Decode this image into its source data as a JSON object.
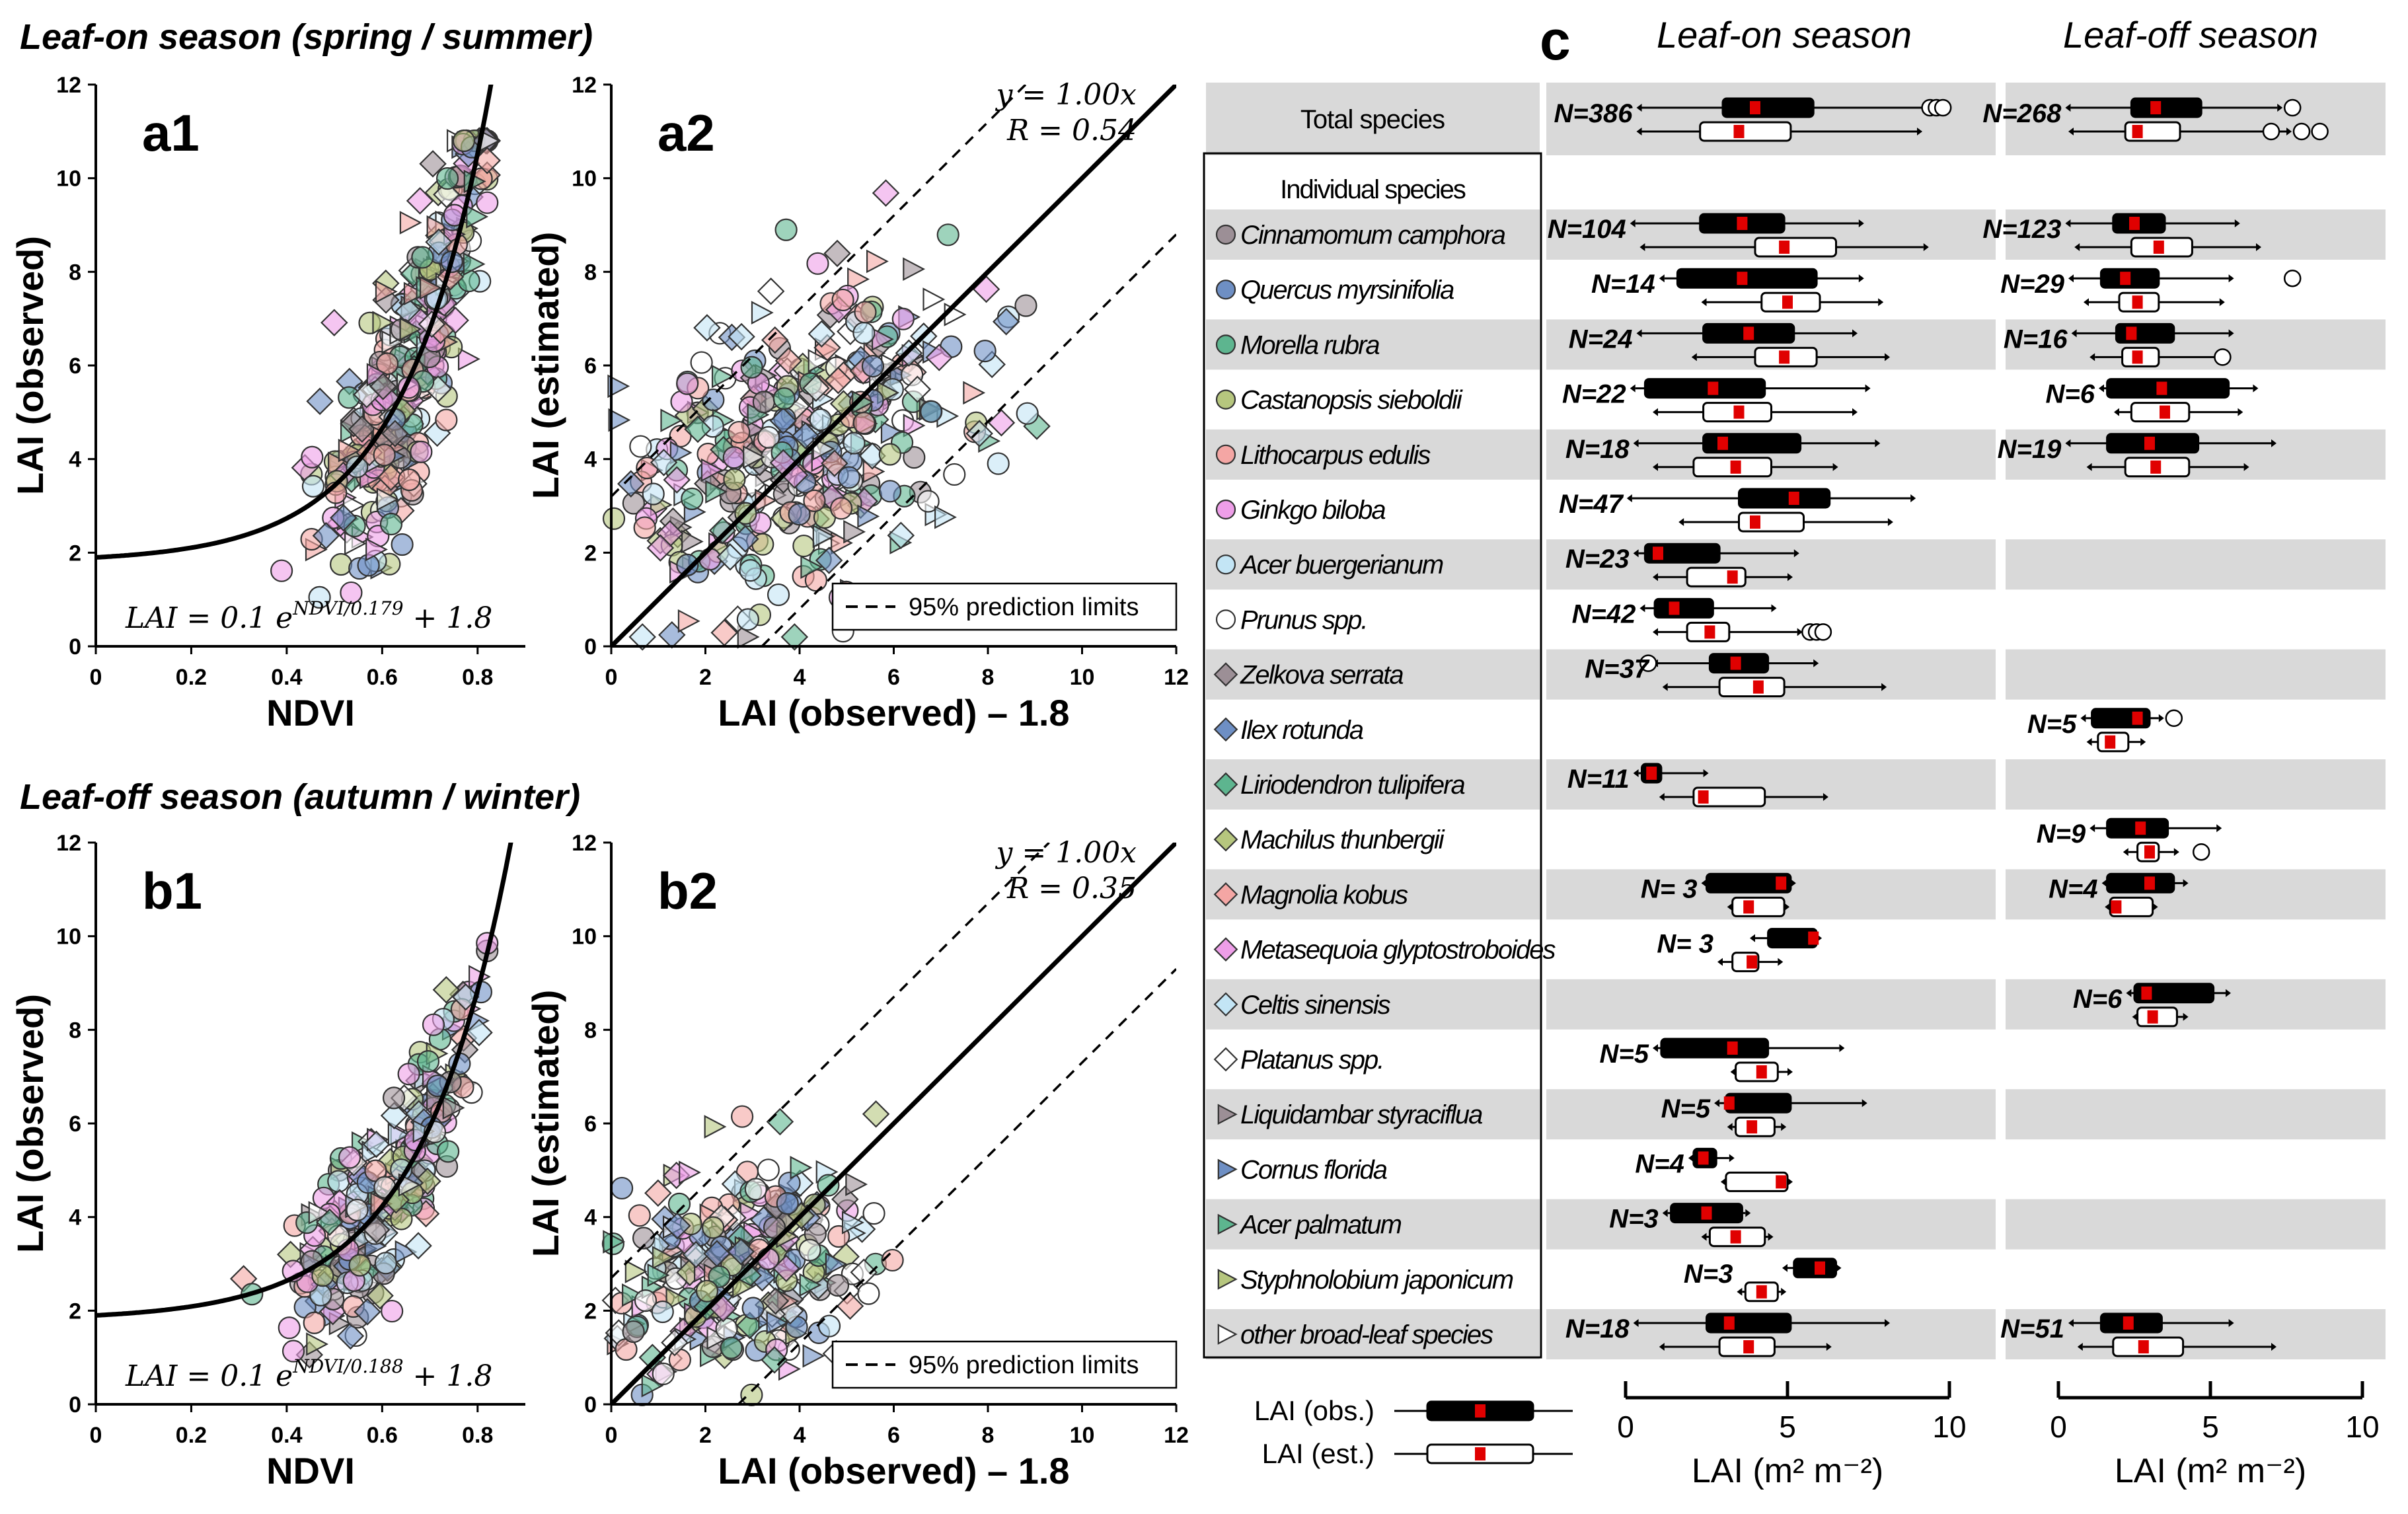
{
  "figure": {
    "leaf_on_heading": "Leaf-on season (spring / summer)",
    "leaf_off_heading": "Leaf-off season (autumn / winter)"
  },
  "chart_data": [
    {
      "id": "a1",
      "type": "scatter",
      "panel_label": "a1",
      "xlabel": "NDVI",
      "ylabel": "LAI (observed)",
      "xlim": [
        0,
        0.9
      ],
      "ylim": [
        0,
        12
      ],
      "x_ticks": [
        "0",
        "0.2",
        "0.4",
        "0.6",
        "0.8"
      ],
      "x_tick_values": [
        0,
        0.2,
        0.4,
        0.6,
        0.8
      ],
      "y_ticks": [
        "0",
        "2",
        "4",
        "6",
        "8",
        "10",
        "12"
      ],
      "y_tick_values": [
        0,
        2,
        4,
        6,
        8,
        10,
        12
      ],
      "curve": {
        "a": 0.1,
        "b": 0.179,
        "c": 1.8
      },
      "equation": "LAI = 0.1 e^(NDVI/0.179) + 1.8",
      "equation_parts": [
        "LAI = 0.1 e",
        "NDVI/0.179",
        " + 1.8"
      ],
      "n_points": 386,
      "point_center": [
        0.66,
        5.6
      ],
      "point_spread": [
        0.09,
        1.6
      ]
    },
    {
      "id": "a2",
      "type": "scatter",
      "panel_label": "a2",
      "xlabel": "LAI (observed) – 1.8",
      "ylabel": "LAI (estimated)",
      "xlim": [
        0,
        12
      ],
      "ylim": [
        0,
        12
      ],
      "x_ticks": [
        "0",
        "2",
        "4",
        "6",
        "8",
        "10",
        "12"
      ],
      "x_tick_values": [
        0,
        2,
        4,
        6,
        8,
        10,
        12
      ],
      "y_ticks": [
        "0",
        "2",
        "4",
        "6",
        "8",
        "10",
        "12"
      ],
      "y_tick_values": [
        0,
        2,
        4,
        6,
        8,
        10,
        12
      ],
      "fit_line_slope": 1.0,
      "prediction_offset": 3.2,
      "equation_line1": "y = 1.00x",
      "equation_line2": "R = 0.54",
      "legend_label": "95% prediction limits",
      "n_points": 386,
      "point_center": [
        3.8,
        4.0
      ],
      "point_spread": [
        1.9,
        1.6
      ]
    },
    {
      "id": "b1",
      "type": "scatter",
      "panel_label": "b1",
      "xlabel": "NDVI",
      "ylabel": "LAI (observed)",
      "xlim": [
        0,
        0.9
      ],
      "ylim": [
        0,
        12
      ],
      "x_ticks": [
        "0",
        "0.2",
        "0.4",
        "0.6",
        "0.8"
      ],
      "x_tick_values": [
        0,
        0.2,
        0.4,
        0.6,
        0.8
      ],
      "y_ticks": [
        "0",
        "2",
        "4",
        "6",
        "8",
        "10",
        "12"
      ],
      "y_tick_values": [
        0,
        2,
        4,
        6,
        8,
        10,
        12
      ],
      "curve": {
        "a": 0.1,
        "b": 0.188,
        "c": 1.8
      },
      "equation": "LAI = 0.1 e^(NDVI/0.188) + 1.8",
      "equation_parts": [
        "LAI = 0.1 e",
        "NDVI/0.188",
        " + 1.8"
      ],
      "n_points": 268,
      "point_center": [
        0.62,
        4.6
      ],
      "point_spread": [
        0.1,
        1.2
      ]
    },
    {
      "id": "b2",
      "type": "scatter",
      "panel_label": "b2",
      "xlabel": "LAI (observed) – 1.8",
      "ylabel": "LAI (estimated)",
      "xlim": [
        0,
        12
      ],
      "ylim": [
        0,
        12
      ],
      "x_ticks": [
        "0",
        "2",
        "4",
        "6",
        "8",
        "10",
        "12"
      ],
      "x_tick_values": [
        0,
        2,
        4,
        6,
        8,
        10,
        12
      ],
      "y_ticks": [
        "0",
        "2",
        "4",
        "6",
        "8",
        "10",
        "12"
      ],
      "y_tick_values": [
        0,
        2,
        4,
        6,
        8,
        10,
        12
      ],
      "fit_line_slope": 1.0,
      "prediction_offset": 2.7,
      "equation_line1": "y = 1.00x",
      "equation_line2": "R = 0.35",
      "legend_label": "95% prediction limits",
      "n_points": 268,
      "point_center": [
        2.6,
        2.9
      ],
      "point_spread": [
        1.4,
        1.2
      ]
    },
    {
      "id": "c",
      "type": "box",
      "panel_label": "c",
      "season_labels": [
        "Leaf-on season",
        "Leaf-off season"
      ],
      "xlabel": "LAI (m² m⁻²)",
      "xlim": [
        0,
        10
      ],
      "x_ticks": [
        "0",
        "5",
        "10"
      ],
      "x_tick_values": [
        0,
        5,
        10
      ],
      "individual_header": "Individual species",
      "legend": {
        "obs": "LAI (obs.)",
        "est": "LAI (est.)"
      },
      "rows": [
        {
          "name": "Total species",
          "marker": "none",
          "color": "",
          "on": {
            "n": "N=386",
            "obs": [
              0.5,
              3.0,
              4.0,
              5.8,
              9.2
            ],
            "obs_out": [
              9.4,
              9.6,
              9.8
            ],
            "est": [
              0.5,
              2.3,
              3.5,
              5.1,
              9.0
            ],
            "est_out": []
          },
          "off": {
            "n": "N=268",
            "obs": [
              0.4,
              2.4,
              3.2,
              4.7,
              7.2
            ],
            "obs_out": [
              7.7
            ],
            "est": [
              0.5,
              2.2,
              2.6,
              4.0,
              7.5
            ],
            "est_out": [
              7.0,
              8.0,
              8.6
            ]
          }
        },
        {
          "name": "Cinnamomum camphora",
          "marker": "circle",
          "color": "#9c8f96",
          "on": {
            "n": "N=104",
            "obs": [
              0.3,
              2.3,
              3.6,
              4.9,
              7.2
            ],
            "obs_out": [],
            "est": [
              0.6,
              4.0,
              4.9,
              6.5,
              9.2
            ],
            "est_out": []
          },
          "off": {
            "n": "N=123",
            "obs": [
              0.4,
              1.8,
              2.5,
              3.5,
              5.8
            ],
            "obs_out": [],
            "est": [
              0.7,
              2.4,
              3.3,
              4.4,
              6.5
            ],
            "est_out": []
          }
        },
        {
          "name": "Quercus myrsinifolia",
          "marker": "circle",
          "color": "#6e8fc4",
          "on": {
            "n": "N=14",
            "obs": [
              1.2,
              1.6,
              3.6,
              5.9,
              7.2
            ],
            "obs_out": [],
            "est": [
              2.5,
              4.2,
              5.0,
              6.0,
              7.8
            ],
            "est_out": []
          },
          "off": {
            "n": "N=29",
            "obs": [
              0.5,
              1.4,
              2.2,
              3.3,
              5.6
            ],
            "obs_out": [
              7.7
            ],
            "est": [
              1.0,
              2.0,
              2.6,
              3.3,
              5.3
            ],
            "est_out": []
          }
        },
        {
          "name": "Morella rubra",
          "marker": "circle",
          "color": "#5db58f",
          "on": {
            "n": "N=24",
            "obs": [
              0.5,
              2.4,
              3.8,
              5.2,
              7.0
            ],
            "obs_out": [],
            "est": [
              2.2,
              4.0,
              4.9,
              5.9,
              8.0
            ],
            "est_out": []
          },
          "off": {
            "n": "N=16",
            "obs": [
              0.6,
              1.9,
              2.4,
              3.8,
              5.6
            ],
            "obs_out": [],
            "est": [
              1.2,
              2.1,
              2.6,
              3.3,
              5.2
            ],
            "est_out": [
              5.4
            ]
          }
        },
        {
          "name": "Castanopsis sieboldii",
          "marker": "circle",
          "color": "#b6c67e",
          "on": {
            "n": "N=22",
            "obs": [
              0.3,
              0.6,
              2.7,
              4.3,
              7.4
            ],
            "obs_out": [],
            "est": [
              1.0,
              2.4,
              3.5,
              4.5,
              7.0
            ],
            "est_out": []
          },
          "off": {
            "n": "N=6",
            "obs": [
              1.5,
              1.6,
              3.4,
              5.6,
              6.4
            ],
            "obs_out": [],
            "est": [
              2.0,
              2.4,
              3.5,
              4.3,
              5.9
            ],
            "est_out": []
          }
        },
        {
          "name": "Lithocarpus edulis",
          "marker": "circle",
          "color": "#f4a6a4",
          "on": {
            "n": "N=18",
            "obs": [
              0.4,
              2.4,
              3.0,
              5.4,
              7.7
            ],
            "obs_out": [],
            "est": [
              1.0,
              2.1,
              3.4,
              4.5,
              6.4
            ],
            "est_out": []
          },
          "off": {
            "n": "N=19",
            "obs": [
              0.4,
              1.6,
              3.0,
              4.6,
              7.0
            ],
            "obs_out": [],
            "est": [
              1.1,
              2.2,
              3.2,
              4.3,
              6.1
            ],
            "est_out": []
          }
        },
        {
          "name": "Ginkgo biloba",
          "marker": "circle",
          "color": "#ee9ee8",
          "on": {
            "n": "N=47",
            "obs": [
              0.2,
              3.5,
              5.2,
              6.3,
              8.8
            ],
            "obs_out": [],
            "est": [
              1.8,
              3.5,
              4.0,
              5.5,
              8.1
            ],
            "est_out": []
          },
          "off": null
        },
        {
          "name": "Acer buergerianum",
          "marker": "circle",
          "color": "#c3e5f5",
          "on": {
            "n": "N=23",
            "obs": [
              0.4,
              0.6,
              1.0,
              2.9,
              5.2
            ],
            "obs_out": [],
            "est": [
              1.0,
              1.9,
              3.3,
              3.7,
              5.0
            ],
            "est_out": []
          },
          "off": null
        },
        {
          "name": "Prunus spp.",
          "marker": "circle",
          "color": "#ffffff",
          "on": {
            "n": "N=42",
            "obs": [
              0.6,
              0.9,
              1.5,
              2.7,
              4.5
            ],
            "obs_out": [],
            "est": [
              1.0,
              1.9,
              2.6,
              3.2,
              5.3
            ],
            "est_out": [
              5.7,
              5.9,
              6.1
            ]
          },
          "off": null
        },
        {
          "name": "Zelkova serrata",
          "marker": "diamond",
          "color": "#9c8f96",
          "on": {
            "n": "N=37",
            "obs": [
              1.0,
              2.6,
              3.4,
              4.4,
              5.8
            ],
            "obs_out": [
              0.7
            ],
            "est": [
              1.3,
              2.9,
              4.1,
              4.9,
              7.9
            ],
            "est_out": []
          },
          "off": null
        },
        {
          "name": "Ilex rotunda",
          "marker": "diamond",
          "color": "#6e8fc4",
          "on": null,
          "off": {
            "n": "N=5",
            "obs": [
              0.9,
              1.1,
              2.6,
              3.0,
              3.3
            ],
            "obs_out": [
              3.8
            ],
            "est": [
              1.1,
              1.3,
              1.7,
              2.3,
              2.7
            ],
            "est_out": []
          }
        },
        {
          "name": "Liriodendron tulipifera",
          "marker": "diamond",
          "color": "#5db58f",
          "on": {
            "n": "N=11",
            "obs": [
              0.4,
              0.5,
              0.8,
              1.1,
              2.4
            ],
            "obs_out": [],
            "est": [
              1.2,
              2.1,
              2.4,
              4.3,
              6.1
            ],
            "est_out": []
          },
          "off": null
        },
        {
          "name": "Machilus thunbergii",
          "marker": "diamond",
          "color": "#b6c67e",
          "on": null,
          "off": {
            "n": "N=9",
            "obs": [
              1.2,
              1.6,
              2.7,
              3.6,
              5.2
            ],
            "obs_out": [],
            "est": [
              2.3,
              2.6,
              3.0,
              3.3,
              3.8
            ],
            "est_out": [
              4.7
            ]
          }
        },
        {
          "name": "Magnolia kobus",
          "marker": "diamond",
          "color": "#f4a6a4",
          "on": {
            "n": "N= 3",
            "obs": [
              2.5,
              2.5,
              4.8,
              5.1,
              5.1
            ],
            "obs_out": [],
            "est": [
              3.3,
              3.3,
              3.8,
              4.9,
              4.9
            ],
            "est_out": []
          },
          "off": {
            "n": "N=4",
            "obs": [
              1.6,
              1.6,
              3.0,
              3.8,
              4.1
            ],
            "obs_out": [],
            "est": [
              1.7,
              1.7,
              1.9,
              3.1,
              3.1
            ],
            "est_out": []
          }
        },
        {
          "name": "Metasequoia glyptostroboides",
          "marker": "diamond",
          "color": "#ee9ee8",
          "on": {
            "n": "N= 3",
            "obs": [
              4.0,
              4.4,
              5.8,
              5.9,
              5.9
            ],
            "obs_out": [],
            "est": [
              3.0,
              3.3,
              3.9,
              4.1,
              4.7
            ],
            "est_out": []
          },
          "off": null
        },
        {
          "name": "Celtis sinensis",
          "marker": "diamond",
          "color": "#c3e5f5",
          "on": null,
          "off": {
            "n": "N=6",
            "obs": [
              2.4,
              2.5,
              2.9,
              5.1,
              5.5
            ],
            "obs_out": [],
            "est": [
              2.6,
              2.6,
              3.1,
              3.9,
              4.1
            ],
            "est_out": []
          }
        },
        {
          "name": "Platanus spp.",
          "marker": "diamond",
          "color": "#ffffff",
          "on": {
            "n": "N=5",
            "obs": [
              1.0,
              1.1,
              3.3,
              4.4,
              6.6
            ],
            "obs_out": [],
            "est": [
              3.4,
              3.4,
              4.2,
              4.7,
              5.0
            ],
            "est_out": []
          },
          "off": null
        },
        {
          "name": "Liquidambar styraciflua",
          "marker": "triangle",
          "color": "#9c8f96",
          "on": {
            "n": "N=5",
            "obs": [
              2.9,
              3.1,
              3.2,
              5.1,
              7.3
            ],
            "obs_out": [],
            "est": [
              3.3,
              3.4,
              3.9,
              4.6,
              4.8
            ],
            "est_out": []
          },
          "off": null
        },
        {
          "name": "Cornus florida",
          "marker": "triangle",
          "color": "#6e8fc4",
          "on": {
            "n": "N=4",
            "obs": [
              2.1,
              2.1,
              2.4,
              2.8,
              3.2
            ],
            "obs_out": [],
            "est": [
              3.1,
              3.1,
              4.8,
              5.0,
              5.0
            ],
            "est_out": []
          },
          "off": null
        },
        {
          "name": "Acer palmatum",
          "marker": "triangle",
          "color": "#5db58f",
          "on": {
            "n": "N=3",
            "obs": [
              1.3,
              1.4,
              2.5,
              3.6,
              3.7
            ],
            "obs_out": [],
            "est": [
              2.5,
              2.6,
              3.4,
              4.3,
              4.4
            ],
            "est_out": []
          },
          "off": null
        },
        {
          "name": "Styphnolobium japonicum",
          "marker": "triangle",
          "color": "#b6c67e",
          "on": {
            "n": "N=3",
            "obs": [
              5.0,
              5.2,
              6.0,
              6.5,
              6.5
            ],
            "obs_out": [],
            "est": [
              3.6,
              3.7,
              4.2,
              4.7,
              4.8
            ],
            "est_out": []
          },
          "off": null
        },
        {
          "name": "other broad-leaf species",
          "marker": "triangle",
          "color": "#ffffff",
          "on": {
            "n": "N=18",
            "obs": [
              0.4,
              2.5,
              3.2,
              5.1,
              8.0
            ],
            "obs_out": [],
            "est": [
              1.2,
              2.9,
              3.8,
              4.6,
              6.2
            ],
            "est_out": []
          },
          "off": {
            "n": "N=51",
            "obs": [
              0.5,
              1.4,
              2.3,
              3.4,
              5.6
            ],
            "obs_out": [],
            "est": [
              0.8,
              1.8,
              2.8,
              4.1,
              7.0
            ],
            "est_out": []
          }
        }
      ]
    }
  ]
}
